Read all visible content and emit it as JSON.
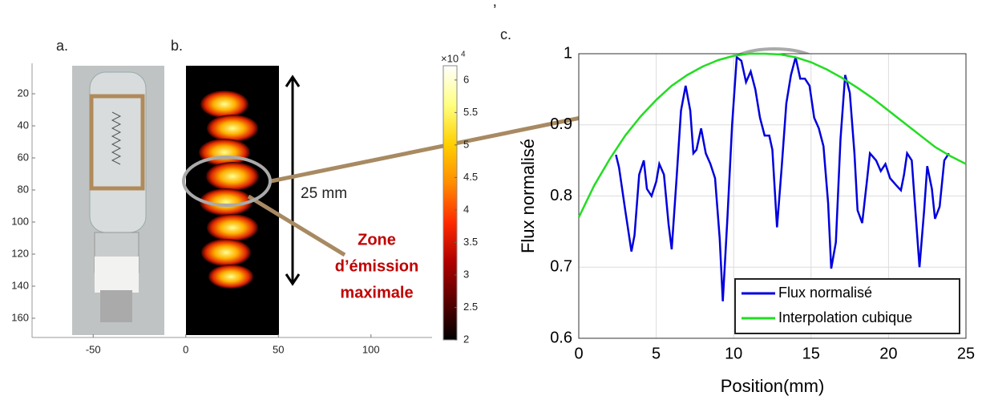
{
  "mark": "’",
  "panel_labels": [
    "a.",
    "b.",
    "c."
  ],
  "chart_data": [
    {
      "type": "image",
      "xlim": [
        -83,
        133
      ],
      "xticks": [
        -50,
        0,
        50,
        100
      ],
      "ylim": [
        1,
        172
      ],
      "yticks": [
        20,
        40,
        60,
        80,
        100,
        120,
        140,
        160
      ],
      "y_reversed": true,
      "colorbar": {
        "clim": [
          2,
          6.22
        ],
        "ticks": [
          2,
          2.5,
          3,
          3.5,
          4,
          4.5,
          5,
          5.5,
          6
        ],
        "scale_base": "×10",
        "scale_power": "4",
        "colors": [
          "#000000",
          "#5a0000",
          "#b00000",
          "#ff2a00",
          "#ff8c00",
          "#ffd000",
          "#ffff80",
          "#ffffff"
        ]
      },
      "annotations": {
        "length": "25 mm",
        "zone": [
          "Zone",
          "d’émission",
          "maximale"
        ]
      }
    },
    {
      "type": "line",
      "xlabel": "Position(mm)",
      "ylabel": "Flux normalisé",
      "xlim": [
        0,
        25
      ],
      "xticks": [
        0,
        5,
        10,
        15,
        20,
        25
      ],
      "ylim": [
        0.6,
        1
      ],
      "yticks": [
        0.6,
        0.7,
        0.8,
        0.9,
        1
      ],
      "grid": true,
      "legend": "lower right",
      "series": [
        {
          "name": "Flux normalisé",
          "color": "#0000dd",
          "x": [
            2.4,
            2.6,
            3.0,
            3.4,
            3.6,
            3.9,
            4.2,
            4.4,
            4.7,
            5.0,
            5.2,
            5.5,
            5.8,
            6.0,
            6.3,
            6.6,
            6.9,
            7.2,
            7.4,
            7.6,
            7.9,
            8.2,
            8.5,
            8.8,
            9.1,
            9.3,
            9.6,
            9.9,
            10.2,
            10.5,
            10.8,
            11.1,
            11.4,
            11.7,
            12.0,
            12.3,
            12.5,
            12.8,
            13.1,
            13.4,
            13.7,
            14.0,
            14.3,
            14.6,
            14.9,
            15.2,
            15.5,
            15.8,
            16.1,
            16.3,
            16.6,
            16.9,
            17.2,
            17.5,
            17.8,
            18.0,
            18.3,
            18.6,
            18.8,
            19.2,
            19.5,
            19.8,
            20.1,
            20.5,
            20.8,
            21.0,
            21.2,
            21.5,
            21.8,
            22.0,
            22.3,
            22.5,
            22.8,
            23.0,
            23.3,
            23.6,
            23.9
          ],
          "values": [
            0.858,
            0.84,
            0.78,
            0.722,
            0.745,
            0.83,
            0.85,
            0.81,
            0.8,
            0.82,
            0.845,
            0.83,
            0.76,
            0.725,
            0.82,
            0.92,
            0.955,
            0.92,
            0.86,
            0.865,
            0.895,
            0.86,
            0.845,
            0.825,
            0.74,
            0.652,
            0.77,
            0.9,
            0.995,
            0.99,
            0.96,
            0.975,
            0.95,
            0.91,
            0.885,
            0.885,
            0.865,
            0.756,
            0.84,
            0.93,
            0.97,
            0.995,
            0.965,
            0.965,
            0.955,
            0.91,
            0.895,
            0.87,
            0.79,
            0.698,
            0.735,
            0.88,
            0.97,
            0.945,
            0.86,
            0.78,
            0.762,
            0.82,
            0.86,
            0.85,
            0.835,
            0.845,
            0.825,
            0.815,
            0.808,
            0.83,
            0.86,
            0.85,
            0.76,
            0.7,
            0.78,
            0.842,
            0.81,
            0.768,
            0.785,
            0.85,
            0.86
          ]
        },
        {
          "name": "Interpolation cubique",
          "color": "#22dd22",
          "x": [
            0,
            1,
            2,
            3,
            4,
            5,
            6,
            7,
            8,
            9,
            10,
            11,
            12,
            13,
            14,
            15,
            16,
            17,
            18,
            19,
            20,
            21,
            22,
            23,
            24,
            25
          ],
          "values": [
            0.77,
            0.815,
            0.852,
            0.885,
            0.912,
            0.935,
            0.955,
            0.97,
            0.982,
            0.991,
            0.997,
            1.0,
            1.0,
            0.999,
            0.995,
            0.988,
            0.978,
            0.966,
            0.952,
            0.937,
            0.92,
            0.903,
            0.886,
            0.869,
            0.856,
            0.845
          ]
        }
      ]
    }
  ]
}
